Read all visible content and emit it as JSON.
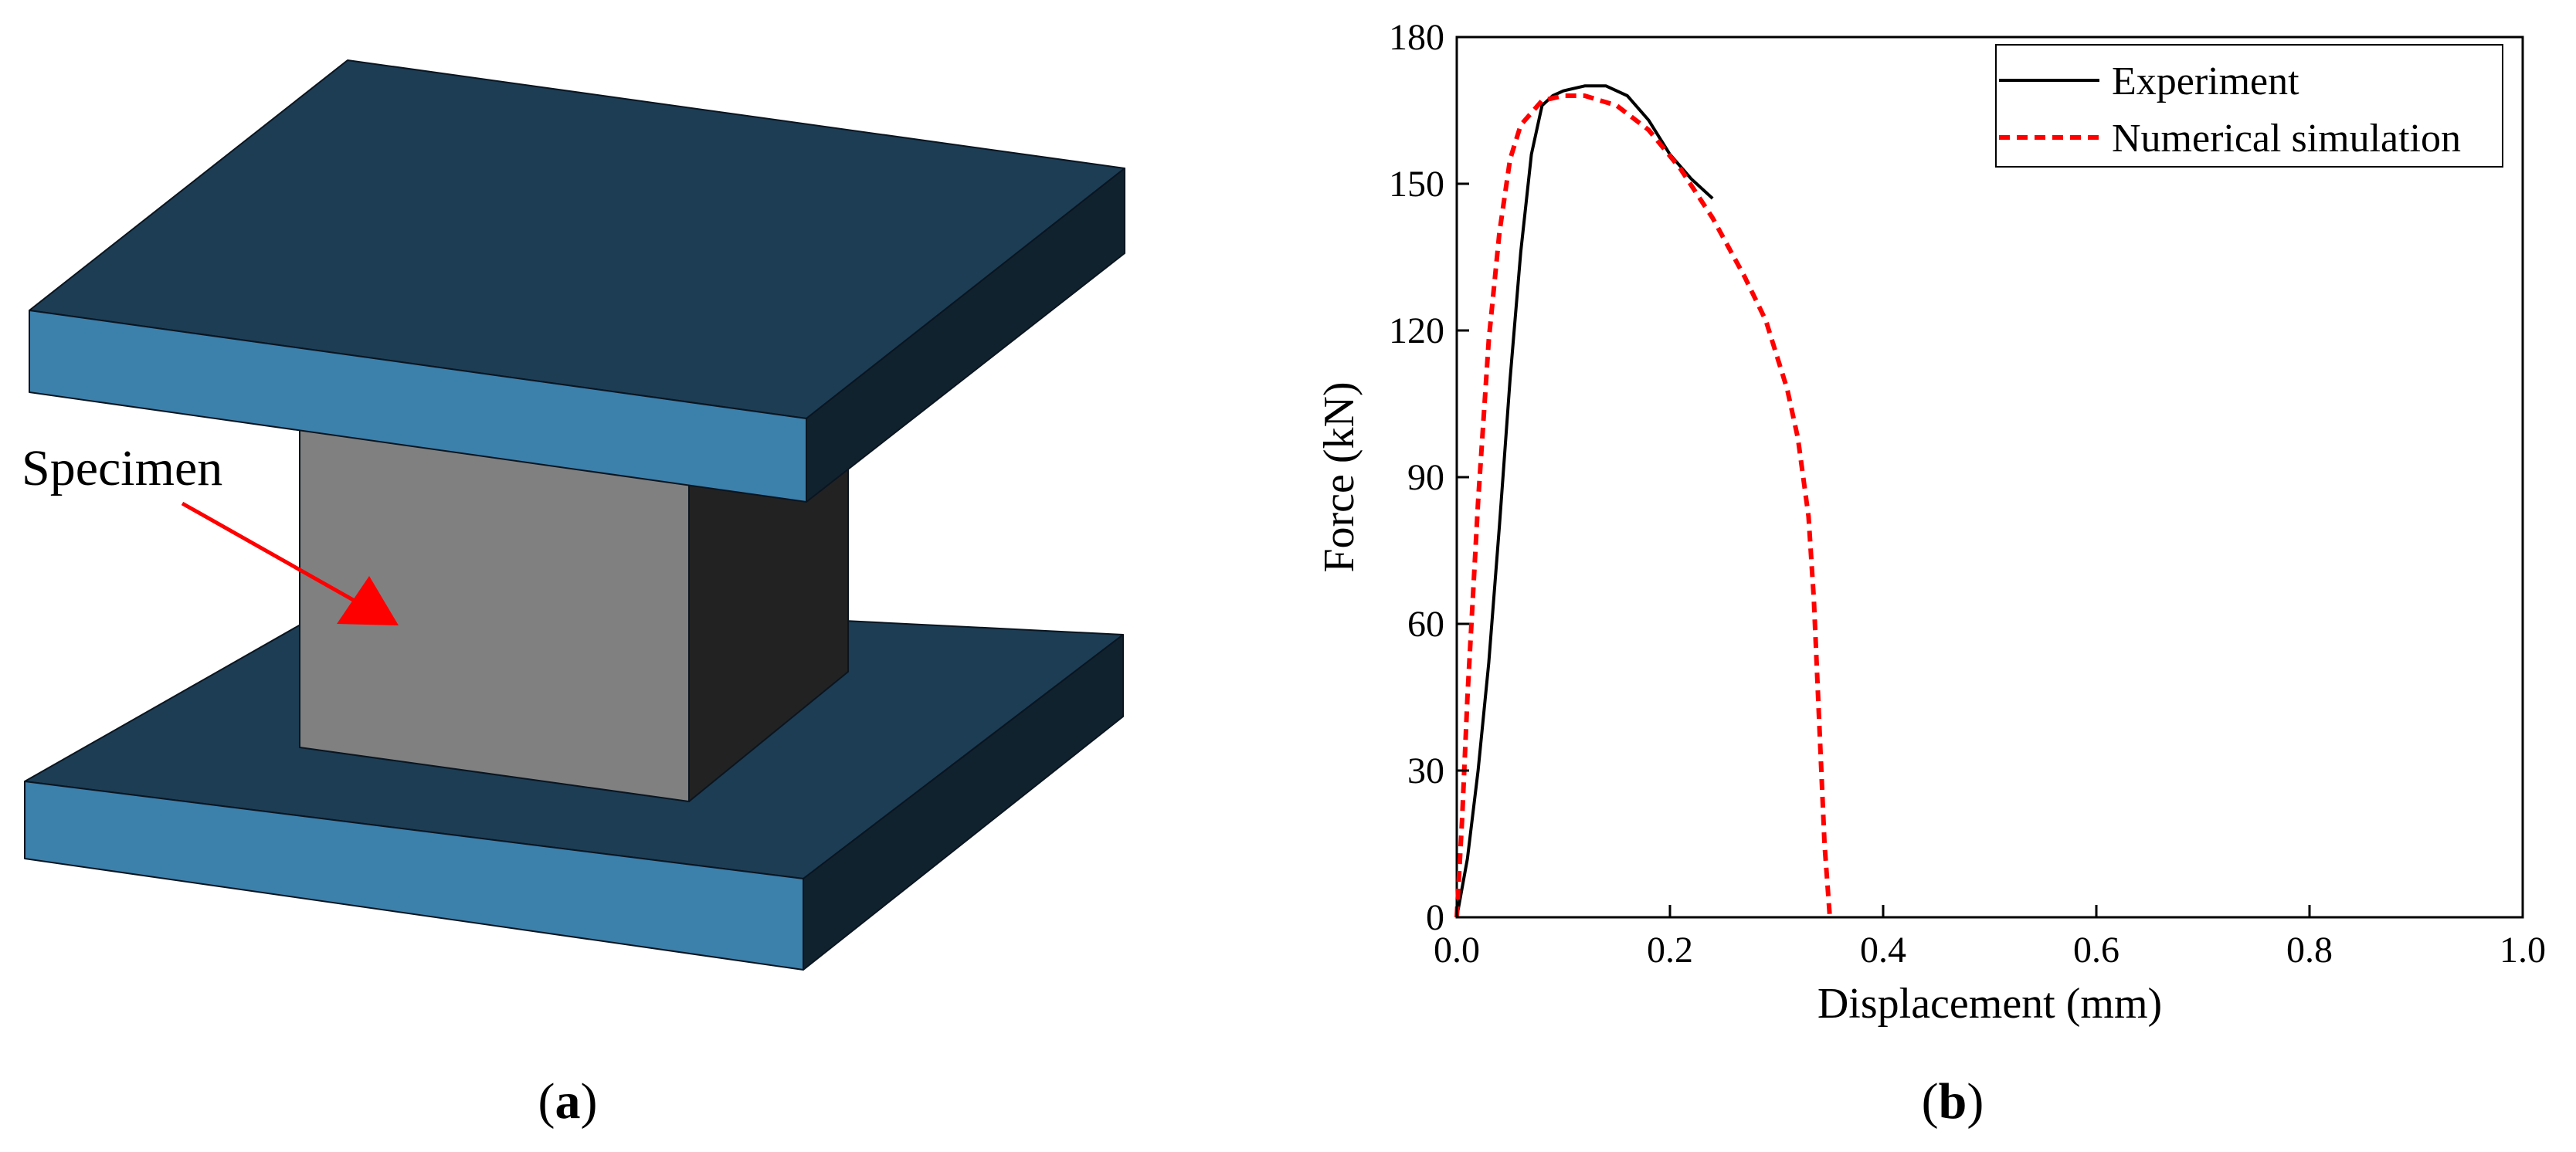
{
  "panel_a": {
    "specimen_label": "Specimen",
    "caption_open": "(",
    "caption_letter": "a",
    "caption_close": ")",
    "colors": {
      "plate_top": "#1C3D54",
      "plate_front": "#3C80AC",
      "plate_side": "#11222F",
      "specimen_front": "#808080",
      "specimen_side": "#222222",
      "arrow": "#FF0000"
    }
  },
  "panel_b": {
    "caption_open": "(",
    "caption_letter": "b",
    "caption_close": ")"
  },
  "chart_data": {
    "type": "line",
    "xlabel": "Displacement (mm)",
    "ylabel": "Force (kN)",
    "xlim": [
      0,
      1.0
    ],
    "ylim": [
      0,
      180
    ],
    "xticks": [
      "0.0",
      "0.2",
      "0.4",
      "0.6",
      "0.8",
      "1.0"
    ],
    "yticks": [
      "0",
      "30",
      "60",
      "90",
      "120",
      "150",
      "180"
    ],
    "grid": false,
    "legend_position": "top-right",
    "series": [
      {
        "name": "Experiment",
        "color": "#000000",
        "style": "solid",
        "x": [
          0.0,
          0.01,
          0.02,
          0.03,
          0.04,
          0.05,
          0.06,
          0.07,
          0.08,
          0.09,
          0.1,
          0.12,
          0.14,
          0.16,
          0.18,
          0.2,
          0.22,
          0.24
        ],
        "y": [
          0,
          12,
          30,
          52,
          80,
          110,
          136,
          156,
          166,
          168,
          169,
          170,
          170,
          168,
          163,
          156,
          151,
          147
        ]
      },
      {
        "name": "Numerical simulation",
        "color": "#FF0000",
        "style": "dashed",
        "x": [
          0.0,
          0.005,
          0.01,
          0.02,
          0.03,
          0.04,
          0.05,
          0.06,
          0.08,
          0.1,
          0.12,
          0.15,
          0.18,
          0.21,
          0.24,
          0.27,
          0.29,
          0.31,
          0.32,
          0.33,
          0.335,
          0.34,
          0.345,
          0.35
        ],
        "y": [
          0,
          20,
          45,
          85,
          118,
          140,
          155,
          162,
          167,
          168,
          168,
          166,
          161,
          153,
          143,
          131,
          122,
          108,
          98,
          82,
          65,
          40,
          15,
          0
        ]
      }
    ]
  }
}
